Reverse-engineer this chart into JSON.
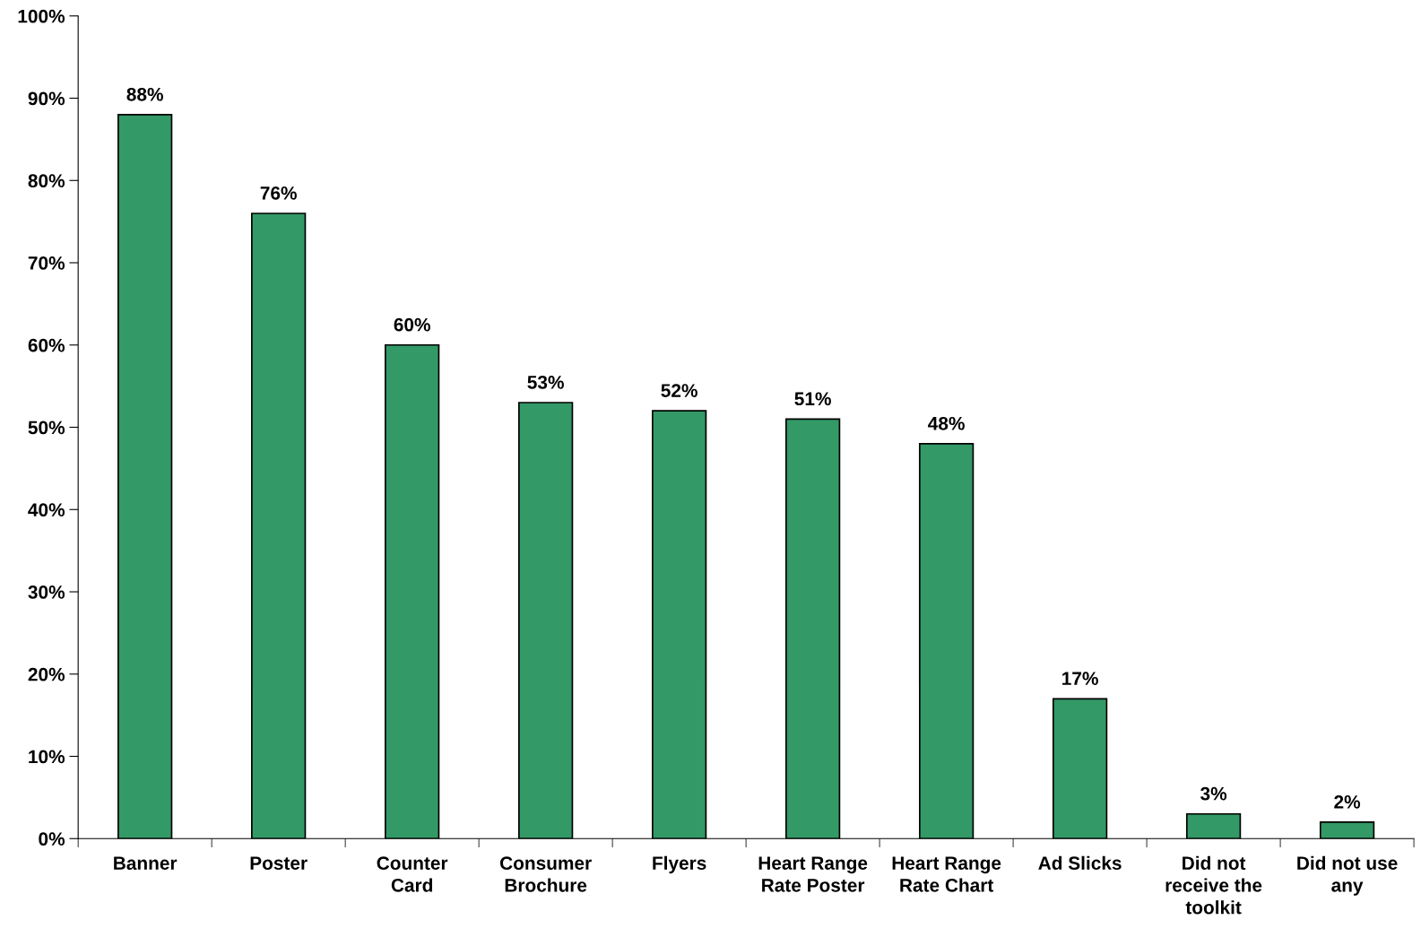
{
  "chart_data": {
    "type": "bar",
    "categories": [
      "Banner",
      "Poster",
      "Counter\nCard",
      "Consumer\nBrochure",
      "Flyers",
      "Heart Range\nRate Poster",
      "Heart Range\nRate Chart",
      "Ad Slicks",
      "Did not\nreceive the\ntoolkit",
      "Did not use\nany"
    ],
    "values": [
      88,
      76,
      60,
      53,
      52,
      51,
      48,
      17,
      3,
      2
    ],
    "value_labels": [
      "88%",
      "76%",
      "60%",
      "53%",
      "52%",
      "51%",
      "48%",
      "17%",
      "3%",
      "2%"
    ],
    "color": "#339966",
    "ylim": [
      0,
      100
    ],
    "yticks": [
      {
        "value": 0,
        "label": "0%"
      },
      {
        "value": 10,
        "label": "10%"
      },
      {
        "value": 20,
        "label": "20%"
      },
      {
        "value": 30,
        "label": "30%"
      },
      {
        "value": 40,
        "label": "40%"
      },
      {
        "value": 50,
        "label": "50%"
      },
      {
        "value": 60,
        "label": "60%"
      },
      {
        "value": 70,
        "label": "70%"
      },
      {
        "value": 80,
        "label": "80%"
      },
      {
        "value": 90,
        "label": "90%"
      },
      {
        "value": 100,
        "label": "100%"
      }
    ],
    "grid": false
  }
}
